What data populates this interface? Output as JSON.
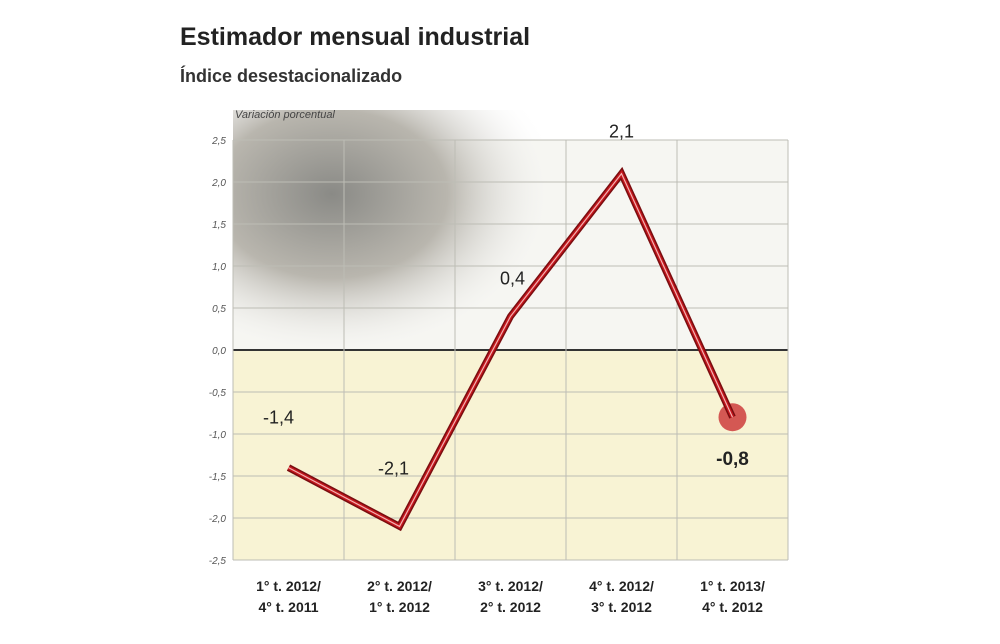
{
  "chart_data": {
    "type": "line",
    "title": "Estimador mensual industrial",
    "subtitle": "Índice desestacionalizado",
    "y_label": "Variación porcentual",
    "categories": [
      "1° t. 2012/\n4° t. 2011",
      "2° t. 2012/\n1° t. 2012",
      "3° t. 2012/\n2° t. 2012",
      "4° t. 2012/\n3° t. 2012",
      "1° t. 2013/\n4° t. 2012"
    ],
    "values": [
      -1.4,
      -2.1,
      0.4,
      2.1,
      -0.8
    ],
    "value_labels": [
      "-1,4",
      "-2,1",
      "0,4",
      "2,1",
      "-0,8"
    ],
    "color": "#c4161c",
    "ylim": [
      -2.5,
      2.5
    ],
    "yticks": [
      {
        "value": 2.5,
        "label": "2,5"
      },
      {
        "value": 2.0,
        "label": "2,0"
      },
      {
        "value": 1.5,
        "label": "1,5"
      },
      {
        "value": 1.0,
        "label": "1,0"
      },
      {
        "value": 0.5,
        "label": "0,5"
      },
      {
        "value": 0,
        "label": "0,0"
      },
      {
        "value": -0.5,
        "label": "-0,5"
      },
      {
        "value": -1.0,
        "label": "-1,0"
      },
      {
        "value": -1.5,
        "label": "-1,5"
      },
      {
        "value": -2.0,
        "label": "-2,0"
      },
      {
        "value": -2.5,
        "label": "-2,5"
      }
    ],
    "grid": true
  }
}
